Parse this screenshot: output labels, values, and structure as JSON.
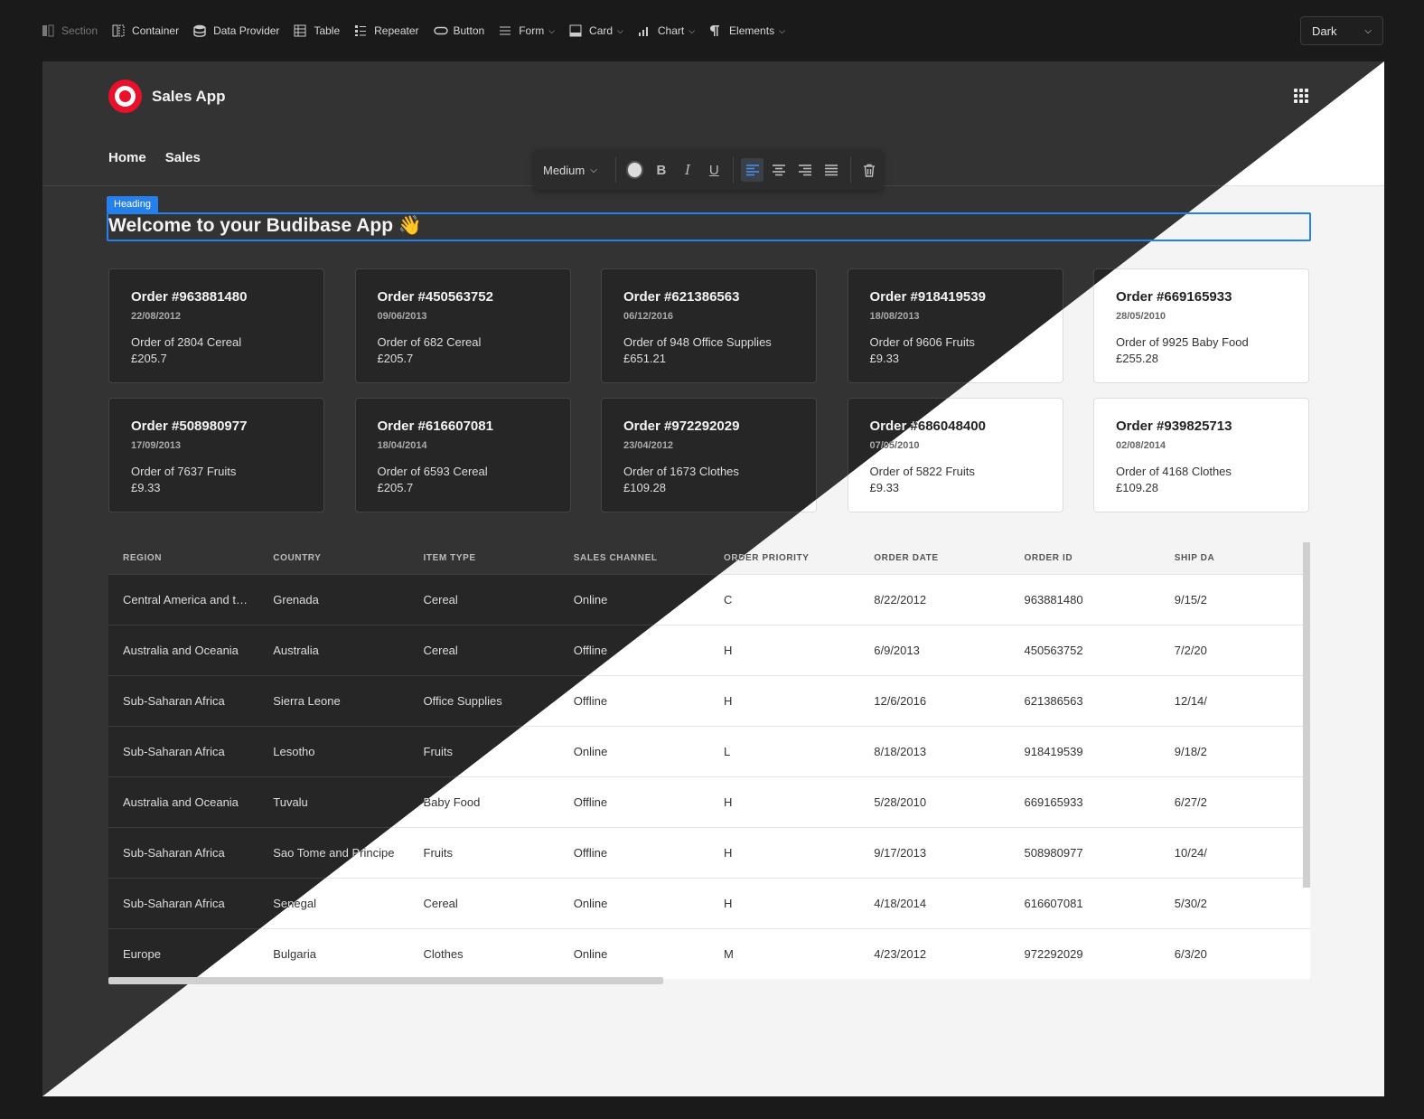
{
  "toolbar": {
    "items": [
      {
        "label": "Section",
        "icon": "section-icon",
        "disabled": true
      },
      {
        "label": "Container",
        "icon": "container-icon"
      },
      {
        "label": "Data Provider",
        "icon": "database-icon"
      },
      {
        "label": "Table",
        "icon": "table-icon"
      },
      {
        "label": "Repeater",
        "icon": "list-icon"
      },
      {
        "label": "Button",
        "icon": "button-icon"
      },
      {
        "label": "Form",
        "icon": "form-icon",
        "dropdown": true
      },
      {
        "label": "Card",
        "icon": "card-icon",
        "dropdown": true
      },
      {
        "label": "Chart",
        "icon": "chart-icon",
        "dropdown": true
      },
      {
        "label": "Elements",
        "icon": "paragraph-icon",
        "dropdown": true
      }
    ],
    "theme": "Dark"
  },
  "app": {
    "title": "Sales App",
    "nav": [
      "Home",
      "Sales"
    ]
  },
  "rich_text": {
    "size": "Medium",
    "bold": "B",
    "italic": "I",
    "underline": "U"
  },
  "heading": {
    "badge": "Heading",
    "text": "Welcome to your Budibase App 👋"
  },
  "cards": [
    {
      "title": "Order #963881480",
      "date": "22/08/2012",
      "line1": "Order of 2804 Cereal",
      "line2": "£205.7"
    },
    {
      "title": "Order #450563752",
      "date": "09/06/2013",
      "line1": "Order of 682 Cereal",
      "line2": "£205.7"
    },
    {
      "title": "Order #621386563",
      "date": "06/12/2016",
      "line1": "Order of 948 Office Supplies",
      "line2": "£651.21"
    },
    {
      "title": "Order #918419539",
      "date": "18/08/2013",
      "line1": "Order of 9606 Fruits",
      "line2": "£9.33"
    },
    {
      "title": "Order #669165933",
      "date": "28/05/2010",
      "line1": "Order of 9925 Baby Food",
      "line2": "£255.28"
    },
    {
      "title": "Order #508980977",
      "date": "17/09/2013",
      "line1": "Order of 7637 Fruits",
      "line2": "£9.33"
    },
    {
      "title": "Order #616607081",
      "date": "18/04/2014",
      "line1": "Order of 6593 Cereal",
      "line2": "£205.7"
    },
    {
      "title": "Order #972292029",
      "date": "23/04/2012",
      "line1": "Order of 1673 Clothes",
      "line2": "£109.28"
    },
    {
      "title": "Order #686048400",
      "date": "07/05/2010",
      "line1": "Order of 5822 Fruits",
      "line2": "£9.33"
    },
    {
      "title": "Order #939825713",
      "date": "02/08/2014",
      "line1": "Order of 4168 Clothes",
      "line2": "£109.28"
    }
  ],
  "table": {
    "columns": [
      "REGION",
      "COUNTRY",
      "ITEM TYPE",
      "SALES CHANNEL",
      "ORDER PRIORITY",
      "ORDER DATE",
      "ORDER ID",
      "SHIP DA"
    ],
    "rows": [
      [
        "Central America and th...",
        "Grenada",
        "Cereal",
        "Online",
        "C",
        "8/22/2012",
        "963881480",
        "9/15/2"
      ],
      [
        "Australia and Oceania",
        "Australia",
        "Cereal",
        "Offline",
        "H",
        "6/9/2013",
        "450563752",
        "7/2/20"
      ],
      [
        "Sub-Saharan Africa",
        "Sierra Leone",
        "Office Supplies",
        "Offline",
        "H",
        "12/6/2016",
        "621386563",
        "12/14/"
      ],
      [
        "Sub-Saharan Africa",
        "Lesotho",
        "Fruits",
        "Online",
        "L",
        "8/18/2013",
        "918419539",
        "9/18/2"
      ],
      [
        "Australia and Oceania",
        "Tuvalu",
        "Baby Food",
        "Offline",
        "H",
        "5/28/2010",
        "669165933",
        "6/27/2"
      ],
      [
        "Sub-Saharan Africa",
        "Sao Tome and Principe",
        "Fruits",
        "Offline",
        "H",
        "9/17/2013",
        "508980977",
        "10/24/"
      ],
      [
        "Sub-Saharan Africa",
        "Senegal",
        "Cereal",
        "Online",
        "H",
        "4/18/2014",
        "616607081",
        "5/30/2"
      ],
      [
        "Europe",
        "Bulgaria",
        "Clothes",
        "Online",
        "M",
        "4/23/2012",
        "972292029",
        "6/3/20"
      ]
    ]
  }
}
